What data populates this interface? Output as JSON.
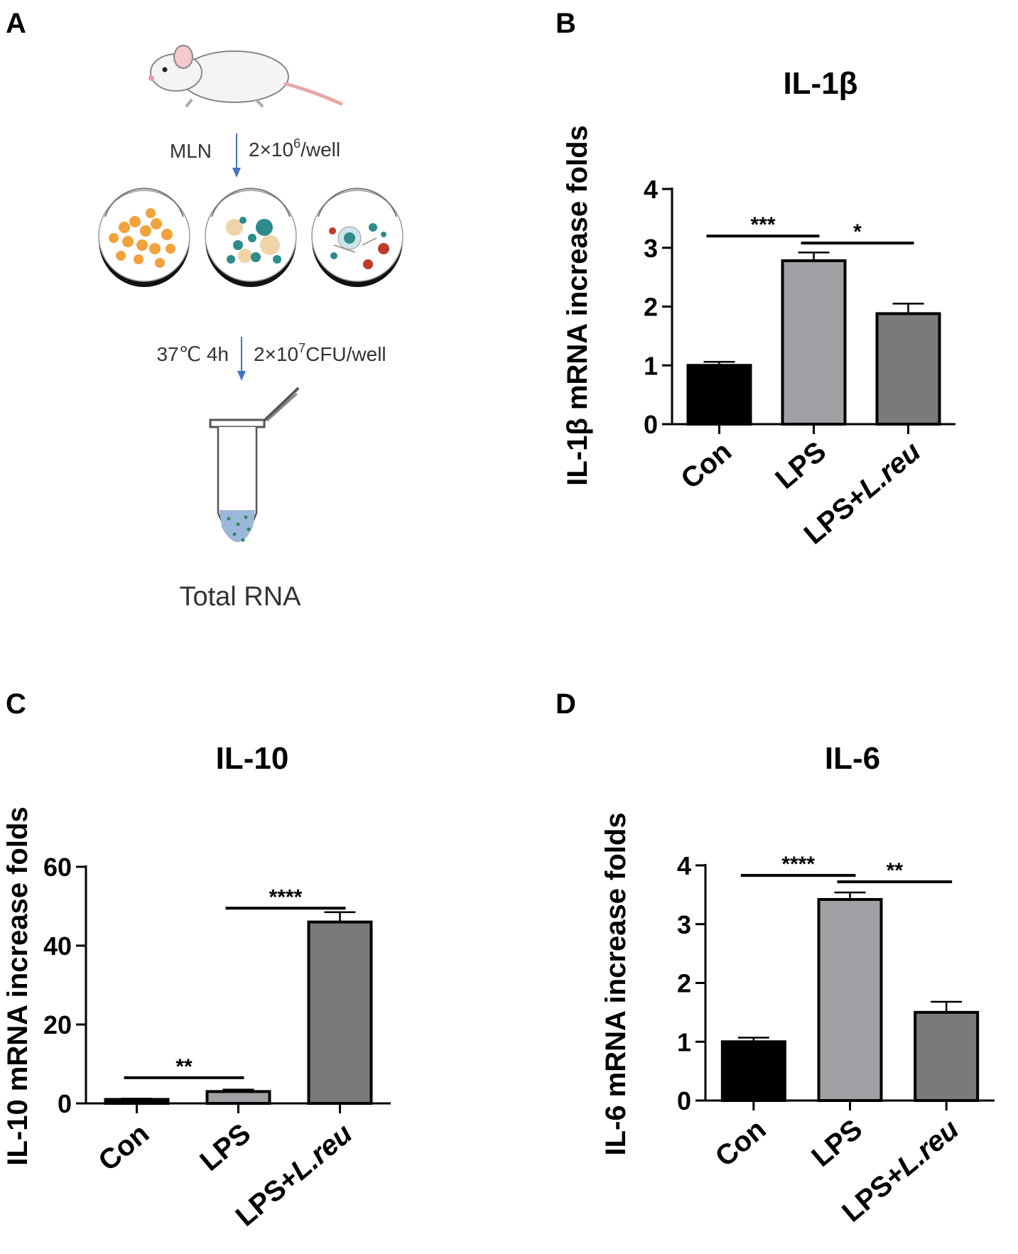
{
  "panels": {
    "a": "A",
    "b": "B",
    "c": "C",
    "d": "D"
  },
  "schematic": {
    "step1_left": "MLN",
    "step1_right_prefix": "2×10",
    "step1_right_sup": "6",
    "step1_right_suffix": "/well",
    "step2_left": "37℃ 4h",
    "step2_right_prefix": "2×10",
    "step2_right_sup": "7",
    "step2_right_suffix": "CFU/well",
    "result": "Total RNA",
    "colors": {
      "arrow": "#4472c4",
      "orange_cells": "#f0a23c",
      "teal_cells": "#2e8b8b",
      "red_cells": "#c0392b",
      "tube_liquid": "#9bb7d9"
    }
  },
  "colors": {
    "con": "#000000",
    "lps": "#a0a0a5",
    "lps_lreu": "#7a7a7a"
  },
  "chart_data": [
    {
      "id": "B",
      "type": "bar",
      "title": "IL-1β",
      "ylabel": "IL-1β mRNA increase folds",
      "categories": [
        "Con",
        "LPS",
        "LPS+L.reu"
      ],
      "values": [
        1.0,
        2.78,
        1.88
      ],
      "errors": [
        0.06,
        0.14,
        0.17
      ],
      "ylim": [
        0,
        4
      ],
      "yticks": [
        "0",
        "1",
        "2",
        "3",
        "4"
      ],
      "significance": [
        {
          "from": 0,
          "to": 1,
          "label": "***",
          "y": 3.2
        },
        {
          "from": 1,
          "to": 2,
          "label": "*",
          "y": 3.08
        }
      ]
    },
    {
      "id": "C",
      "type": "bar",
      "title": "IL-10",
      "ylabel": "IL-10 mRNA increase folds",
      "categories": [
        "Con",
        "LPS",
        "LPS+L.reu"
      ],
      "values": [
        1.0,
        3.0,
        46.0
      ],
      "errors": [
        0.2,
        0.5,
        2.5
      ],
      "ylim": [
        0,
        60
      ],
      "yticks": [
        "0",
        "20",
        "40",
        "60"
      ],
      "significance": [
        {
          "from": 0,
          "to": 1,
          "label": "**",
          "y": 6.5
        },
        {
          "from": 1,
          "to": 2,
          "label": "****",
          "y": 49.5
        }
      ]
    },
    {
      "id": "D",
      "type": "bar",
      "title": "IL-6",
      "ylabel": "IL-6 mRNA increase folds",
      "categories": [
        "Con",
        "LPS",
        "LPS+L.reu"
      ],
      "values": [
        1.0,
        3.42,
        1.5
      ],
      "errors": [
        0.07,
        0.12,
        0.18
      ],
      "ylim": [
        0,
        4
      ],
      "yticks": [
        "0",
        "1",
        "2",
        "3",
        "4"
      ],
      "significance": [
        {
          "from": 0,
          "to": 1,
          "label": "****",
          "y": 3.83
        },
        {
          "from": 1,
          "to": 2,
          "label": "**",
          "y": 3.72
        }
      ]
    }
  ]
}
